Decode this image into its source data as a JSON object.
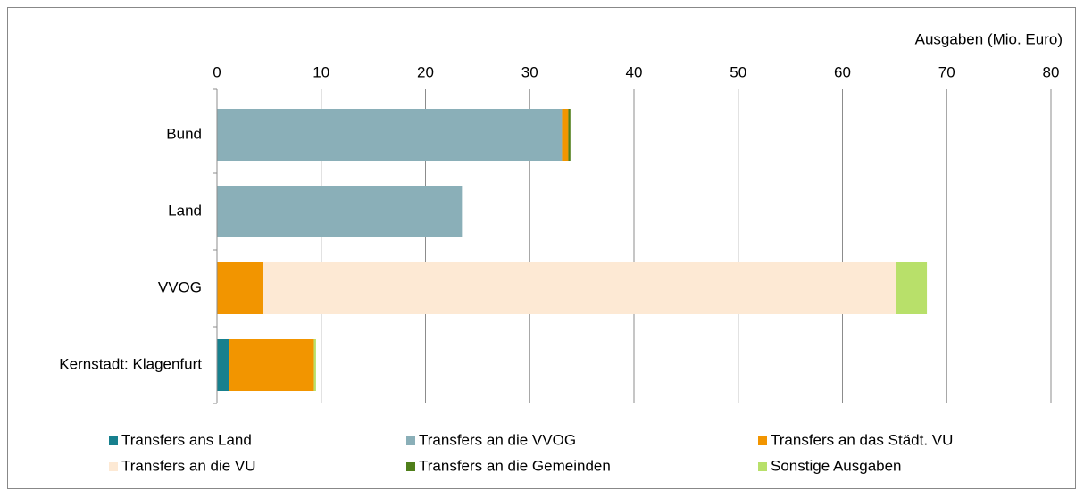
{
  "chart_data": {
    "type": "stacked-barh",
    "x_axis_label": "Ausgaben (Mio. Euro)",
    "categories": [
      "Bund",
      "Land",
      "VVOG",
      "Kernstadt: Klagenfurt"
    ],
    "series": [
      {
        "name": "Transfers ans Land",
        "color": "#17808e",
        "values": [
          0,
          0,
          0,
          1.2
        ]
      },
      {
        "name": "Transfers an die VVOG",
        "color": "#8aafb8",
        "values": [
          33.1,
          23.5,
          0,
          0
        ]
      },
      {
        "name": "Transfers an das Städt. VU",
        "color": "#f29500",
        "values": [
          0.6,
          0,
          4.4,
          8.1
        ]
      },
      {
        "name": "Transfers an die VU",
        "color": "#fde9d4",
        "values": [
          0,
          0,
          60.7,
          0
        ]
      },
      {
        "name": "Transfers an die Gemeinden",
        "color": "#4f7f1a",
        "values": [
          0.2,
          0,
          0,
          0
        ]
      },
      {
        "name": "Sonstige Ausgaben",
        "color": "#b8e06a",
        "values": [
          0,
          0,
          3.0,
          0.2
        ]
      }
    ],
    "xlim": [
      0,
      80
    ],
    "xticks": [
      0,
      10,
      20,
      30,
      40,
      50,
      60,
      70,
      80
    ],
    "grid": true
  }
}
